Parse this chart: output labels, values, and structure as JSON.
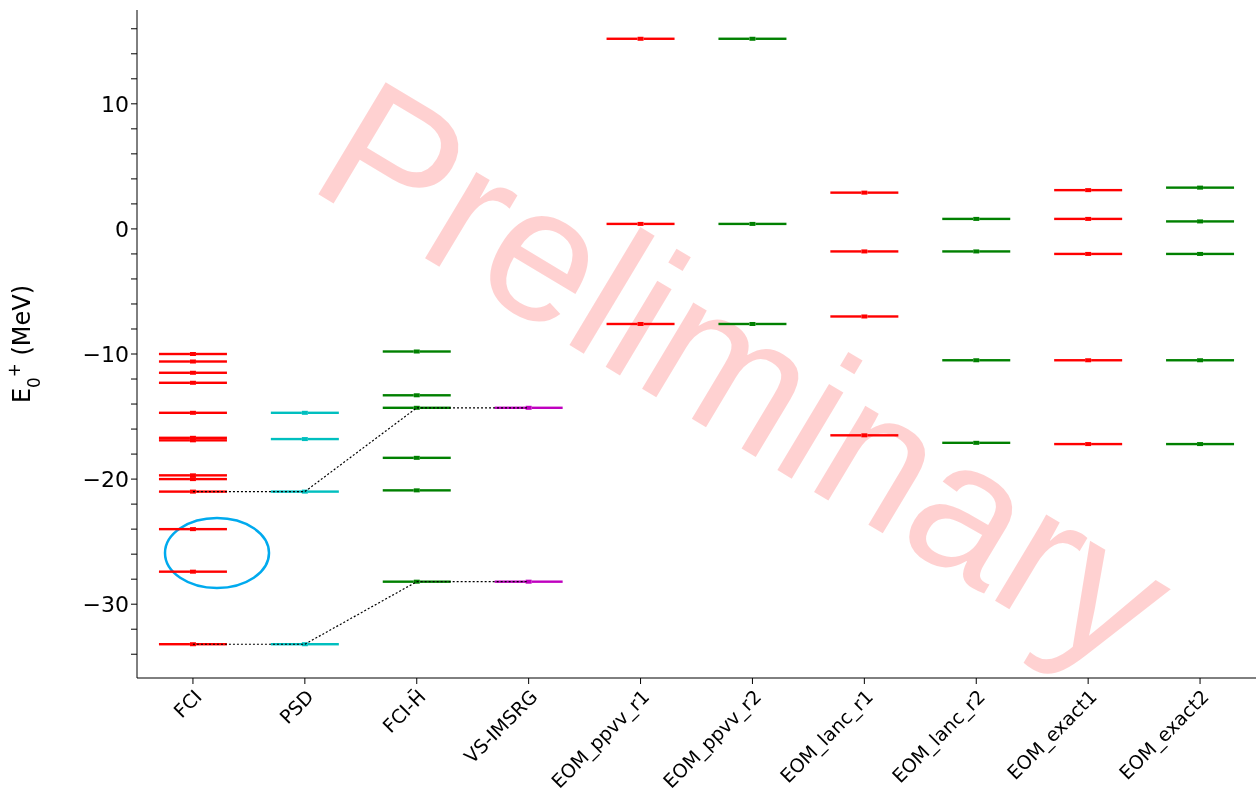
{
  "chart_data": {
    "type": "scatter",
    "ylabel": "E$_{0}$$^{+}$ (MeV)",
    "categories": [
      "FCI",
      "PSD",
      "FCI-H̄",
      "VS-IMSRG",
      "EOM_ppvv_r1",
      "EOM_ppvv_r2",
      "EOM_lanc_r1",
      "EOM_lanc_r2",
      "EOM_exact1",
      "EOM_exact2"
    ],
    "ylim": [
      -35.9,
      17.5
    ],
    "yticks": [
      {
        "value": -34,
        "label": null
      },
      {
        "value": -32,
        "label": null
      },
      -30,
      {
        "value": -28,
        "label": null
      },
      {
        "value": -26,
        "label": null
      },
      {
        "value": -24,
        "label": null
      },
      {
        "value": -22,
        "label": null
      },
      -20,
      {
        "value": -18,
        "label": null
      },
      {
        "value": -16,
        "label": null
      },
      {
        "value": -14,
        "label": null
      },
      {
        "value": -12,
        "label": null
      },
      -10,
      {
        "value": -8,
        "label": null
      },
      {
        "value": -6,
        "label": null
      },
      {
        "value": -4,
        "label": null
      },
      {
        "value": -2,
        "label": null
      },
      0,
      {
        "value": 2,
        "label": null
      },
      {
        "value": 4,
        "label": null
      },
      {
        "value": 6,
        "label": null
      },
      {
        "value": 8,
        "label": null
      },
      10,
      {
        "value": 12,
        "label": null
      },
      {
        "value": 14,
        "label": null
      },
      {
        "value": 16,
        "label": null
      }
    ],
    "grid": false,
    "legend": false,
    "series": [
      {
        "type": "scatter",
        "color": "#ff0000",
        "x": [
          "FCI",
          "FCI",
          "FCI",
          "FCI",
          "FCI",
          "FCI",
          "FCI",
          "FCI",
          "FCI",
          "FCI",
          "FCI",
          "FCI",
          "FCI",
          "EOM_ppvv_r1",
          "EOM_ppvv_r1",
          "EOM_ppvv_r1",
          "EOM_lanc_r1",
          "EOM_lanc_r1",
          "EOM_lanc_r1",
          "EOM_lanc_r1",
          "EOM_exact1",
          "EOM_exact1",
          "EOM_exact1",
          "EOM_exact1",
          "EOM_exact1"
        ],
        "values": [
          -10.0,
          -10.6,
          -11.5,
          -12.3,
          -14.7,
          -16.7,
          -16.9,
          -19.7,
          -20.0,
          -21.0,
          -24.0,
          -27.4,
          -33.2,
          15.2,
          0.4,
          -7.6,
          2.9,
          -1.8,
          -7.0,
          -16.5,
          3.1,
          0.8,
          -2.0,
          -10.5,
          -17.2
        ]
      },
      {
        "type": "scatter",
        "color": "#00bfbf",
        "x": [
          "PSD",
          "PSD",
          "PSD",
          "PSD"
        ],
        "values": [
          -14.7,
          -16.8,
          -21.0,
          -33.2
        ]
      },
      {
        "type": "scatter",
        "color": "#008000",
        "x": [
          "FCI-H̄",
          "FCI-H̄",
          "FCI-H̄",
          "FCI-H̄",
          "FCI-H̄",
          "FCI-H̄",
          "EOM_ppvv_r2",
          "EOM_ppvv_r2",
          "EOM_ppvv_r2",
          "EOM_lanc_r2",
          "EOM_lanc_r2",
          "EOM_lanc_r2",
          "EOM_lanc_r2",
          "EOM_exact2",
          "EOM_exact2",
          "EOM_exact2",
          "EOM_exact2",
          "EOM_exact2"
        ],
        "values": [
          -9.8,
          -13.3,
          -14.3,
          -18.3,
          -20.9,
          -28.2,
          15.2,
          0.4,
          -7.6,
          0.8,
          -1.8,
          -10.5,
          -17.1,
          3.3,
          0.6,
          -2.0,
          -10.5,
          -17.2
        ]
      },
      {
        "type": "scatter",
        "color": "#bf00bf",
        "x": [
          "VS-IMSRG",
          "VS-IMSRG"
        ],
        "values": [
          -14.3,
          -28.2
        ]
      },
      {
        "type": "line",
        "color": "#000000",
        "line_style": "dotted",
        "x": [
          "FCI",
          "PSD",
          "FCI-H̄",
          "VS-IMSRG"
        ],
        "values": [
          -33.2,
          -33.2,
          -28.2,
          -28.2
        ]
      },
      {
        "type": "line",
        "color": "#000000",
        "line_style": "dotted",
        "x": [
          "FCI",
          "PSD",
          "FCI-H̄",
          "VS-IMSRG"
        ],
        "values": [
          -21.0,
          -21.0,
          -14.3,
          -14.3
        ]
      }
    ],
    "annotations": [
      "Preliminary"
    ]
  }
}
